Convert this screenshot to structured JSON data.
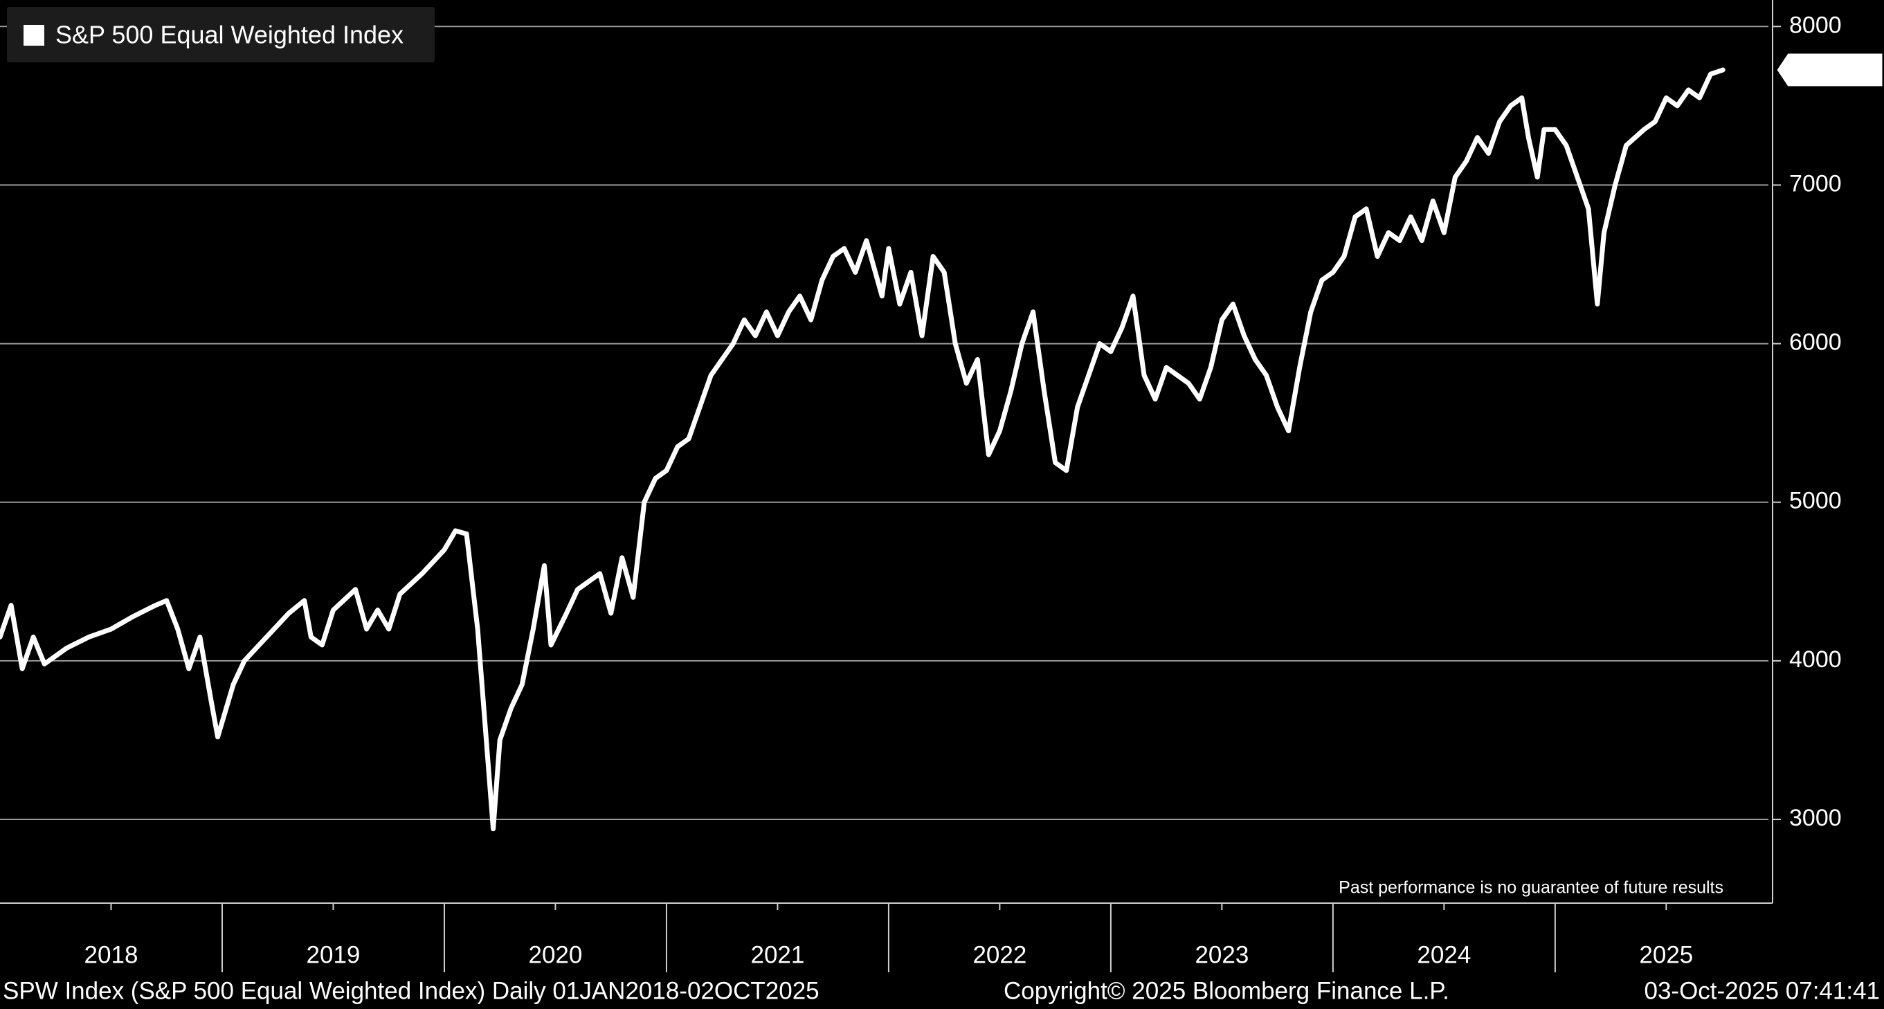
{
  "chart_data": {
    "type": "line",
    "x": [
      2018.0,
      2018.05,
      2018.1,
      2018.15,
      2018.2,
      2018.3,
      2018.4,
      2018.5,
      2018.6,
      2018.7,
      2018.75,
      2018.8,
      2018.85,
      2018.9,
      2018.95,
      2018.98,
      2019.05,
      2019.1,
      2019.2,
      2019.3,
      2019.37,
      2019.4,
      2019.45,
      2019.5,
      2019.6,
      2019.65,
      2019.7,
      2019.75,
      2019.8,
      2019.9,
      2020.0,
      2020.05,
      2020.1,
      2020.15,
      2020.2,
      2020.22,
      2020.25,
      2020.3,
      2020.35,
      2020.4,
      2020.45,
      2020.48,
      2020.55,
      2020.6,
      2020.7,
      2020.75,
      2020.8,
      2020.85,
      2020.9,
      2020.95,
      2021.0,
      2021.05,
      2021.1,
      2021.15,
      2021.2,
      2021.3,
      2021.35,
      2021.4,
      2021.45,
      2021.5,
      2021.55,
      2021.6,
      2021.65,
      2021.7,
      2021.75,
      2021.8,
      2021.85,
      2021.9,
      2021.93,
      2021.97,
      2022.0,
      2022.05,
      2022.1,
      2022.15,
      2022.2,
      2022.25,
      2022.3,
      2022.35,
      2022.4,
      2022.45,
      2022.5,
      2022.55,
      2022.6,
      2022.65,
      2022.7,
      2022.75,
      2022.8,
      2022.85,
      2022.9,
      2022.95,
      2023.0,
      2023.05,
      2023.1,
      2023.15,
      2023.2,
      2023.25,
      2023.3,
      2023.35,
      2023.4,
      2023.45,
      2023.5,
      2023.55,
      2023.6,
      2023.65,
      2023.7,
      2023.75,
      2023.8,
      2023.85,
      2023.9,
      2023.95,
      2024.0,
      2024.05,
      2024.1,
      2024.15,
      2024.2,
      2024.25,
      2024.3,
      2024.35,
      2024.4,
      2024.45,
      2024.5,
      2024.55,
      2024.6,
      2024.65,
      2024.7,
      2024.75,
      2024.8,
      2024.85,
      2024.88,
      2024.92,
      2024.95,
      2025.0,
      2025.05,
      2025.1,
      2025.15,
      2025.19,
      2025.22,
      2025.27,
      2025.32,
      2025.4,
      2025.45,
      2025.5,
      2025.55,
      2025.6,
      2025.65,
      2025.7,
      2025.755
    ],
    "series": [
      {
        "name": "S&P 500 Equal Weighted Index",
        "color": "#ffffff",
        "values": [
          4150,
          4350,
          3950,
          4150,
          3980,
          4080,
          4150,
          4200,
          4280,
          4350,
          4380,
          4200,
          3950,
          4150,
          3750,
          3520,
          3850,
          4000,
          4150,
          4300,
          4380,
          4150,
          4100,
          4320,
          4450,
          4200,
          4320,
          4200,
          4420,
          4550,
          4700,
          4820,
          4800,
          4200,
          3300,
          2940,
          3500,
          3700,
          3850,
          4200,
          4600,
          4100,
          4300,
          4450,
          4550,
          4300,
          4650,
          4400,
          5000,
          5150,
          5200,
          5350,
          5400,
          5600,
          5800,
          6000,
          6150,
          6050,
          6200,
          6050,
          6200,
          6300,
          6150,
          6400,
          6550,
          6600,
          6450,
          6650,
          6500,
          6300,
          6600,
          6250,
          6450,
          6050,
          6550,
          6450,
          6000,
          5750,
          5900,
          5300,
          5450,
          5700,
          6000,
          6200,
          5700,
          5250,
          5200,
          5600,
          5800,
          6000,
          5950,
          6100,
          6300,
          5800,
          5650,
          5850,
          5800,
          5750,
          5650,
          5850,
          6150,
          6250,
          6050,
          5900,
          5800,
          5600,
          5450,
          5850,
          6200,
          6400,
          6450,
          6550,
          6800,
          6850,
          6550,
          6700,
          6650,
          6800,
          6650,
          6900,
          6700,
          7050,
          7150,
          7300,
          7200,
          7400,
          7500,
          7550,
          7300,
          7050,
          7350,
          7350,
          7250,
          7050,
          6850,
          6250,
          6700,
          7000,
          7250,
          7350,
          7400,
          7550,
          7500,
          7600,
          7550,
          7700,
          7726.02
        ]
      }
    ],
    "xlim": [
      2018,
      2025.96
    ],
    "xticks": [
      {
        "value": 2018.5,
        "label": "2018"
      },
      {
        "value": 2019.5,
        "label": "2019"
      },
      {
        "value": 2020.5,
        "label": "2020"
      },
      {
        "value": 2021.5,
        "label": "2021"
      },
      {
        "value": 2022.5,
        "label": "2022"
      },
      {
        "value": 2023.5,
        "label": "2023"
      },
      {
        "value": 2024.5,
        "label": "2024"
      },
      {
        "value": 2025.5,
        "label": "2025"
      }
    ],
    "ylim": [
      2472,
      8167
    ],
    "yticks": [
      3000,
      4000,
      5000,
      6000,
      7000,
      8000
    ],
    "grid": true,
    "legend": "upper left",
    "note": "Past performance is no guarantee of future results",
    "source": "SPW Index (S&P 500 Equal Weighted Index) Daily 01JAN2018-02OCT2025",
    "copyright": "Copyright© 2025 Bloomberg Finance L.P.",
    "timestamp": "03-Oct-2025 07:41:41"
  }
}
